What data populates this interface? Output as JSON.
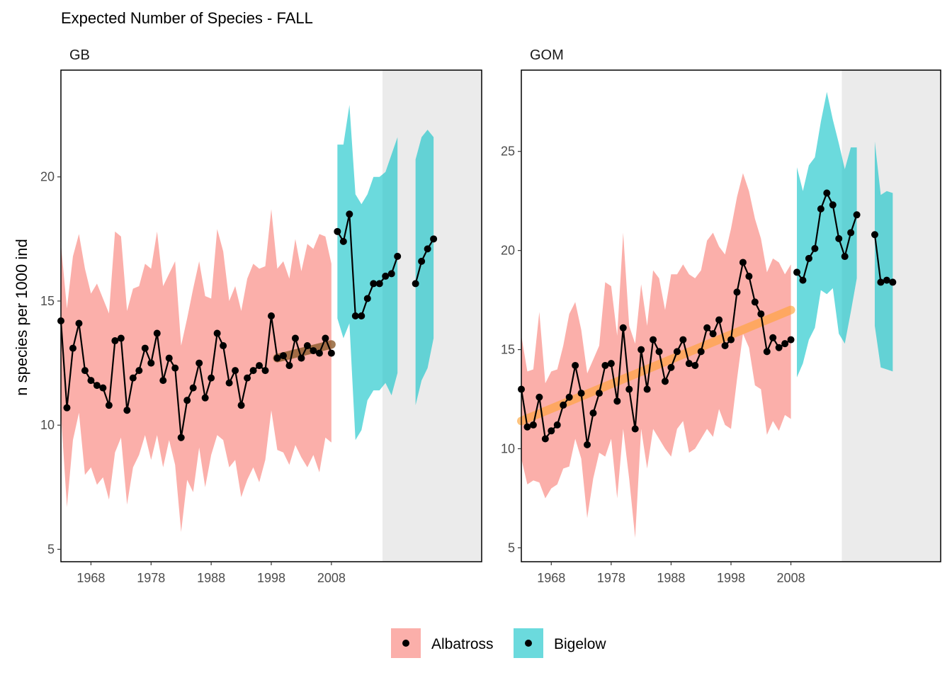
{
  "chart_data": {
    "type": "line",
    "title": "Expected Number of Species - FALL",
    "ylabel": "n species per 1000 ind",
    "xlabel": "",
    "x_ticks": [
      1968,
      1978,
      1988,
      1998,
      2008
    ],
    "legend": {
      "placement": "bottom",
      "entries": [
        {
          "name": "Albatross",
          "color": "#F8766D"
        },
        {
          "name": "Bigelow",
          "color": "#00BFC4"
        }
      ]
    },
    "colors": {
      "albatross_ribbon": "#F8766D",
      "bigelow_ribbon": "#00BFC4",
      "trend_gb": "#8B5A2B",
      "trend_gom": "#FFA33A",
      "shaded_region": "#EBEBEB"
    },
    "panels": [
      {
        "name": "GB",
        "xlim": [
          1963,
          2033
        ],
        "ylim": [
          4.5,
          24.3
        ],
        "y_ticks": [
          5,
          10,
          15,
          20
        ],
        "shaded_x_range": [
          2016.5,
          2033
        ],
        "trend": {
          "x": [
            1999,
            2008
          ],
          "y": [
            12.7,
            13.25
          ]
        },
        "series": [
          {
            "name": "Albatross",
            "x": [
              1963,
              1964,
              1965,
              1966,
              1967,
              1968,
              1969,
              1970,
              1971,
              1972,
              1973,
              1974,
              1975,
              1976,
              1977,
              1978,
              1979,
              1980,
              1981,
              1982,
              1983,
              1984,
              1985,
              1986,
              1987,
              1988,
              1989,
              1990,
              1991,
              1992,
              1993,
              1994,
              1995,
              1996,
              1997,
              1998,
              1999,
              2000,
              2001,
              2002,
              2003,
              2004,
              2005,
              2006,
              2007,
              2008
            ],
            "y": [
              14.2,
              10.7,
              13.1,
              14.1,
              12.2,
              11.8,
              11.6,
              11.5,
              10.8,
              13.4,
              13.5,
              10.6,
              11.9,
              12.2,
              13.1,
              12.5,
              13.7,
              11.8,
              12.7,
              12.3,
              9.5,
              11.0,
              11.5,
              12.5,
              11.1,
              11.9,
              13.7,
              13.2,
              11.7,
              12.2,
              10.8,
              11.9,
              12.2,
              12.4,
              12.2,
              14.4,
              12.7,
              12.8,
              12.4,
              13.5,
              12.7,
              13.2,
              13.0,
              12.9,
              13.5,
              12.9
            ],
            "lower": [
              10.5,
              6.7,
              9.4,
              10.5,
              8.0,
              8.3,
              7.6,
              7.9,
              7.0,
              8.9,
              9.5,
              6.8,
              8.3,
              8.8,
              9.6,
              8.6,
              9.6,
              8.3,
              9.4,
              8.4,
              5.7,
              7.8,
              7.3,
              9.1,
              7.5,
              8.8,
              9.6,
              9.4,
              8.3,
              8.6,
              7.1,
              7.8,
              8.3,
              7.7,
              8.6,
              10.6,
              9.0,
              8.9,
              8.4,
              9.2,
              8.7,
              8.3,
              8.8,
              8.1,
              9.5,
              9.3
            ],
            "upper": [
              17.3,
              14.7,
              16.8,
              17.7,
              16.3,
              15.3,
              15.7,
              15.1,
              14.5,
              17.8,
              17.6,
              14.6,
              15.5,
              15.6,
              16.5,
              16.3,
              17.8,
              15.6,
              16.1,
              16.6,
              13.2,
              14.3,
              15.5,
              16.6,
              15.2,
              15.1,
              17.9,
              17.0,
              15.0,
              15.6,
              14.6,
              15.9,
              16.5,
              16.3,
              16.4,
              18.7,
              16.3,
              16.6,
              15.9,
              17.5,
              16.2,
              17.3,
              17.1,
              17.7,
              17.6,
              16.5
            ]
          },
          {
            "name": "Bigelow",
            "x": [
              2009,
              2010,
              2011,
              2012,
              2013,
              2014,
              2015,
              2016,
              2017,
              2018,
              2019,
              2022,
              2023,
              2024,
              2025
            ],
            "y": [
              17.8,
              17.4,
              18.5,
              14.4,
              14.4,
              15.1,
              15.7,
              15.7,
              16.0,
              16.1,
              16.8,
              15.7,
              16.6,
              17.1,
              17.5
            ],
            "lower": [
              14.3,
              13.5,
              14.1,
              9.4,
              9.8,
              11.0,
              11.4,
              11.4,
              11.7,
              11.2,
              12.1,
              10.8,
              11.8,
              12.3,
              13.5
            ],
            "upper": [
              21.3,
              21.3,
              22.9,
              19.3,
              18.9,
              19.3,
              20.0,
              20.0,
              20.2,
              20.9,
              21.6,
              20.7,
              21.6,
              21.9,
              21.6
            ],
            "segments": [
              [
                0,
                10
              ],
              [
                11,
                14
              ]
            ]
          }
        ]
      },
      {
        "name": "GOM",
        "xlim": [
          1963,
          2033
        ],
        "ylim": [
          4.3,
          29.1
        ],
        "y_ticks": [
          5,
          10,
          15,
          20,
          25
        ],
        "shaded_x_range": [
          2016.5,
          2033
        ],
        "trend": {
          "x": [
            1963,
            2008
          ],
          "y": [
            11.4,
            17.0
          ]
        },
        "series": [
          {
            "name": "Albatross",
            "x": [
              1963,
              1964,
              1965,
              1966,
              1967,
              1968,
              1969,
              1970,
              1971,
              1972,
              1973,
              1974,
              1975,
              1976,
              1977,
              1978,
              1979,
              1980,
              1981,
              1982,
              1983,
              1984,
              1985,
              1986,
              1987,
              1988,
              1989,
              1990,
              1991,
              1992,
              1993,
              1994,
              1995,
              1996,
              1997,
              1998,
              1999,
              2000,
              2001,
              2002,
              2003,
              2004,
              2005,
              2006,
              2007,
              2008
            ],
            "y": [
              13.0,
              11.1,
              11.2,
              12.6,
              10.5,
              10.9,
              11.2,
              12.2,
              12.6,
              14.2,
              12.8,
              10.2,
              11.8,
              12.8,
              14.2,
              14.3,
              12.4,
              16.1,
              13.0,
              11.0,
              15.0,
              13.0,
              15.5,
              14.9,
              13.4,
              14.1,
              14.9,
              15.5,
              14.3,
              14.2,
              14.9,
              16.1,
              15.8,
              16.5,
              15.2,
              15.5,
              17.9,
              19.4,
              18.7,
              17.4,
              16.8,
              14.9,
              15.6,
              15.1,
              15.3,
              15.5
            ],
            "lower": [
              9.5,
              8.2,
              8.4,
              8.3,
              7.5,
              8.0,
              8.2,
              9.0,
              9.1,
              10.5,
              9.5,
              6.5,
              8.5,
              9.8,
              9.6,
              10.5,
              7.5,
              11.0,
              8.5,
              5.5,
              11.0,
              9.0,
              11.0,
              10.5,
              10.0,
              9.6,
              11.0,
              11.4,
              9.8,
              10.0,
              10.5,
              11.0,
              10.6,
              12.0,
              11.2,
              11.0,
              13.5,
              15.8,
              15.1,
              13.2,
              13.0,
              10.7,
              11.4,
              10.9,
              11.7,
              11.5
            ],
            "upper": [
              15.7,
              13.9,
              14.0,
              16.9,
              13.3,
              13.9,
              14.0,
              15.2,
              16.8,
              17.4,
              16.0,
              13.8,
              14.5,
              15.2,
              18.4,
              18.2,
              15.7,
              20.9,
              16.2,
              15.3,
              18.3,
              16.2,
              19.0,
              18.6,
              17.0,
              18.8,
              18.8,
              19.3,
              18.8,
              18.6,
              19.0,
              20.5,
              20.9,
              20.2,
              19.8,
              21.1,
              22.7,
              23.9,
              23.0,
              21.6,
              20.6,
              18.9,
              19.6,
              19.4,
              18.8,
              19.3
            ]
          },
          {
            "name": "Bigelow",
            "x": [
              2009,
              2010,
              2011,
              2012,
              2013,
              2014,
              2015,
              2016,
              2017,
              2018,
              2019,
              2022,
              2023,
              2024,
              2025
            ],
            "y": [
              18.9,
              18.5,
              19.6,
              20.1,
              22.1,
              22.9,
              22.3,
              20.6,
              19.7,
              20.9,
              21.8,
              20.8,
              18.4,
              18.5,
              18.4
            ],
            "lower": [
              13.6,
              14.3,
              15.5,
              16.1,
              18.0,
              17.8,
              18.1,
              15.8,
              15.3,
              16.9,
              18.6,
              16.2,
              14.1,
              14.0,
              13.9
            ],
            "upper": [
              24.2,
              23.0,
              24.3,
              24.7,
              26.5,
              28.0,
              26.6,
              25.4,
              24.1,
              25.2,
              25.2,
              25.5,
              22.8,
              23.0,
              22.9
            ],
            "segments": [
              [
                0,
                10
              ],
              [
                11,
                14
              ]
            ]
          }
        ]
      }
    ]
  }
}
